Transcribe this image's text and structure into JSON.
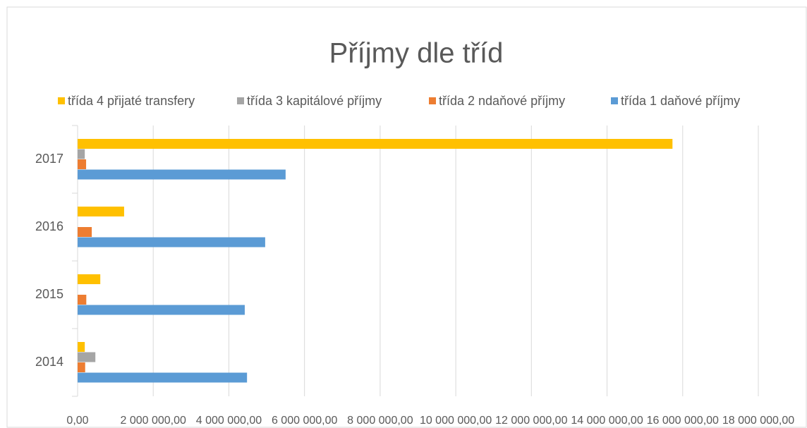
{
  "chart_data": {
    "type": "bar",
    "orientation": "horizontal",
    "title": "Příjmy dle tříd",
    "categories": [
      "2014",
      "2015",
      "2016",
      "2017"
    ],
    "series": [
      {
        "name": "třída 4 přijaté transfery",
        "color": "#ffc000",
        "values": [
          190000,
          600000,
          1230000,
          15730000
        ]
      },
      {
        "name": "třída 3 kapitálové příjmy",
        "color": "#a5a5a5",
        "values": [
          470000,
          0,
          0,
          190000
        ]
      },
      {
        "name": "třída 2 ndaňové příjmy",
        "color": "#ed7d31",
        "values": [
          200000,
          230000,
          375000,
          225000
        ]
      },
      {
        "name": "třída 1 daňové příjmy",
        "color": "#5b9bd5",
        "values": [
          4480000,
          4420000,
          4960000,
          5500000
        ]
      }
    ],
    "xlim": [
      0,
      18000000
    ],
    "xticks": [
      {
        "value": 0,
        "label": "0,00"
      },
      {
        "value": 2000000,
        "label": "2 000 000,00"
      },
      {
        "value": 4000000,
        "label": "4 000 000,00"
      },
      {
        "value": 6000000,
        "label": "6 000 000,00"
      },
      {
        "value": 8000000,
        "label": "8 000 000,00"
      },
      {
        "value": 10000000,
        "label": "10 000 000,00"
      },
      {
        "value": 12000000,
        "label": "12 000 000,00"
      },
      {
        "value": 14000000,
        "label": "14 000 000,00"
      },
      {
        "value": 16000000,
        "label": "16 000 000,00"
      },
      {
        "value": 18000000,
        "label": "18 000 000,00"
      }
    ],
    "grid": true,
    "legend": "top"
  }
}
